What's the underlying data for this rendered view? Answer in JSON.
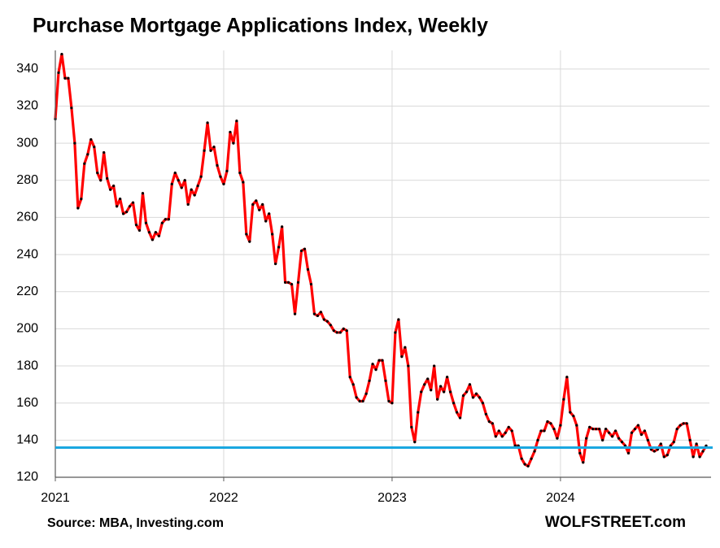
{
  "chart_data": {
    "type": "line",
    "title": "Purchase Mortgage Applications Index, Weekly",
    "source": "Source: MBA, Investing.com",
    "brand": "WOLFSTREET.com",
    "color": "#ff0000",
    "marker_color": "#000000",
    "values": [
      313,
      338,
      348,
      335,
      335,
      319,
      300,
      265,
      270,
      289,
      294,
      302,
      298,
      284,
      280,
      295,
      281,
      275,
      277,
      266,
      270,
      262,
      263,
      266,
      268,
      256,
      253,
      273,
      257,
      252,
      248,
      252,
      250,
      257,
      259,
      259,
      278,
      284,
      280,
      276,
      280,
      267,
      275,
      272,
      277,
      282,
      296,
      311,
      296,
      298,
      288,
      282,
      278,
      285,
      306,
      300,
      312,
      284,
      279,
      251,
      247,
      267,
      269,
      264,
      267,
      258,
      262,
      251,
      235,
      244,
      255,
      225,
      225,
      224,
      208,
      225,
      242,
      243,
      232,
      224,
      208,
      207,
      209,
      205,
      204,
      202,
      199,
      198,
      198,
      200,
      199,
      174,
      170,
      163,
      161,
      161,
      165,
      172,
      181,
      178,
      183,
      183,
      172,
      161,
      160,
      198,
      205,
      185,
      190,
      180,
      147,
      139,
      155,
      166,
      170,
      173,
      167,
      180,
      162,
      169,
      166,
      174,
      166,
      160,
      155,
      152,
      164,
      166,
      170,
      163,
      165,
      163,
      160,
      154,
      150,
      149,
      142,
      145,
      142,
      144,
      147,
      145,
      137,
      137,
      130,
      127,
      126,
      130,
      134,
      140,
      145,
      145,
      150,
      149,
      146,
      141,
      148,
      162,
      174,
      155,
      153,
      148,
      133,
      128,
      141,
      147,
      146,
      146,
      146,
      140,
      146,
      144,
      142,
      145,
      141,
      139,
      137,
      133,
      144,
      146,
      148,
      143,
      145,
      140,
      135,
      134,
      135,
      138,
      131,
      132,
      137,
      139,
      146,
      148,
      149,
      149,
      140,
      131,
      138,
      131,
      134,
      137
    ],
    "xlim": [
      0,
      202
    ],
    "xticks": [
      {
        "value": 0,
        "label": "2021"
      },
      {
        "value": 52,
        "label": "2022"
      },
      {
        "value": 104,
        "label": "2023"
      },
      {
        "value": 156,
        "label": "2024"
      }
    ],
    "ylim": [
      120,
      350
    ],
    "yticks": [
      120,
      140,
      160,
      180,
      200,
      220,
      240,
      260,
      280,
      300,
      320,
      340
    ],
    "grid": true,
    "reference_line": {
      "value": 136,
      "color": "#1aa7e0"
    }
  }
}
